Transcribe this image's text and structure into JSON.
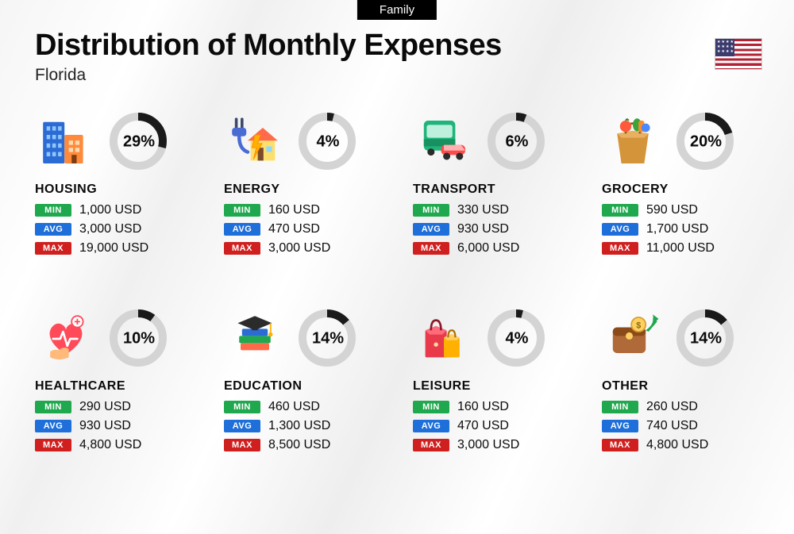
{
  "header_tag": "Family",
  "title": "Distribution of Monthly Expenses",
  "subtitle": "Florida",
  "currency": "USD",
  "labels": {
    "min": "MIN",
    "avg": "AVG",
    "max": "MAX"
  },
  "colors": {
    "min_badge": "#1fa84d",
    "avg_badge": "#1e6fd9",
    "max_badge": "#d01f1f",
    "donut_fill": "#1a1a1a",
    "donut_track": "#d4d4d4",
    "text": "#0a0a0a"
  },
  "donut": {
    "outer_r": 36,
    "inner_r": 26
  },
  "categories": [
    {
      "key": "housing",
      "name": "HOUSING",
      "pct": 29,
      "pct_label": "29%",
      "min": "1,000 USD",
      "avg": "3,000 USD",
      "max": "19,000 USD",
      "icon": "buildings"
    },
    {
      "key": "energy",
      "name": "ENERGY",
      "pct": 4,
      "pct_label": "4%",
      "min": "160 USD",
      "avg": "470 USD",
      "max": "3,000 USD",
      "icon": "energy"
    },
    {
      "key": "transport",
      "name": "TRANSPORT",
      "pct": 6,
      "pct_label": "6%",
      "min": "330 USD",
      "avg": "930 USD",
      "max": "6,000 USD",
      "icon": "transport"
    },
    {
      "key": "grocery",
      "name": "GROCERY",
      "pct": 20,
      "pct_label": "20%",
      "min": "590 USD",
      "avg": "1,700 USD",
      "max": "11,000 USD",
      "icon": "grocery"
    },
    {
      "key": "healthcare",
      "name": "HEALTHCARE",
      "pct": 10,
      "pct_label": "10%",
      "min": "290 USD",
      "avg": "930 USD",
      "max": "4,800 USD",
      "icon": "healthcare"
    },
    {
      "key": "education",
      "name": "EDUCATION",
      "pct": 14,
      "pct_label": "14%",
      "min": "460 USD",
      "avg": "1,300 USD",
      "max": "8,500 USD",
      "icon": "education"
    },
    {
      "key": "leisure",
      "name": "LEISURE",
      "pct": 4,
      "pct_label": "4%",
      "min": "160 USD",
      "avg": "470 USD",
      "max": "3,000 USD",
      "icon": "leisure"
    },
    {
      "key": "other",
      "name": "OTHER",
      "pct": 14,
      "pct_label": "14%",
      "min": "260 USD",
      "avg": "740 USD",
      "max": "4,800 USD",
      "icon": "other"
    }
  ]
}
